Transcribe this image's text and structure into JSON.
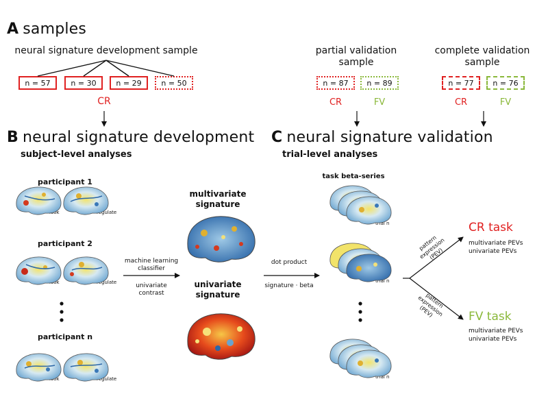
{
  "colors": {
    "cr": "#e02020",
    "fv": "#8ab83a",
    "ink": "#111111"
  },
  "sectionA": {
    "letter": "A",
    "title": "samples",
    "dev_sample": "neural signature development sample",
    "dev_boxes": [
      "n = 57",
      "n = 30",
      "n = 29",
      "n = 50"
    ],
    "dev_group": "CR",
    "partial_title": "partial validation\nsample",
    "partial_boxes": [
      "n = 87",
      "n = 89"
    ],
    "partial_groups": [
      "CR",
      "FV"
    ],
    "complete_title": "complete validation\nsample",
    "complete_boxes": [
      "n = 77",
      "n = 76"
    ],
    "complete_groups": [
      "CR",
      "FV"
    ]
  },
  "sectionB": {
    "letter": "B",
    "title": "neural signature development",
    "subtitle": "subject-level analyses",
    "participants": [
      "participant 1",
      "participant 2",
      "participant n"
    ],
    "conditions": [
      "look",
      "regulate"
    ],
    "method_top": "machine learning\nclassifier",
    "method_bottom": "univariate\ncontrast",
    "sig_multi": "multivariate\nsignature",
    "sig_uni": "univariate\nsignature"
  },
  "sectionC": {
    "letter": "C",
    "title": "neural signature validation",
    "subtitle": "trial-level analyses",
    "beta_series": "task beta-series",
    "trial": "trial n",
    "dot_top": "dot product",
    "dot_bottom": "signature · beta",
    "pev_label": "pattern\nexpression\n(PEV)",
    "task_cr": "CR task",
    "task_fv": "FV task",
    "pev_lines": [
      "multivariate PEVs",
      "univariate PEVs"
    ]
  }
}
